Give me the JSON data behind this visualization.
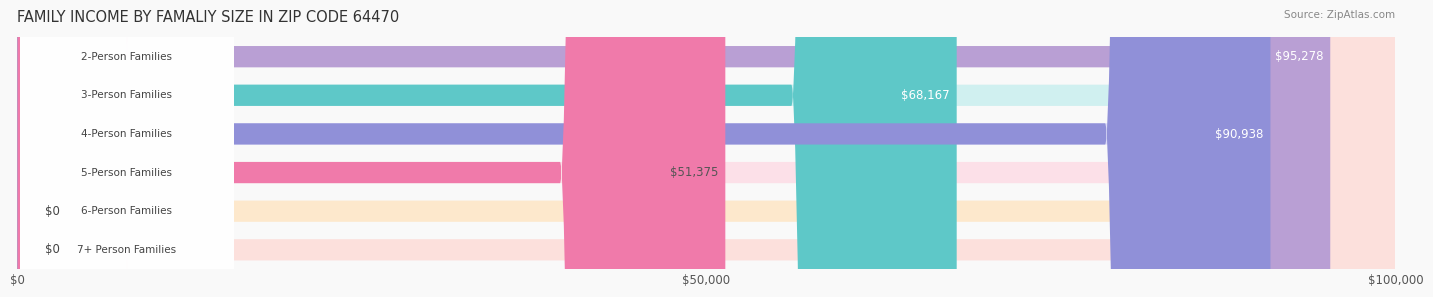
{
  "title": "FAMILY INCOME BY FAMALIY SIZE IN ZIP CODE 64470",
  "source": "Source: ZipAtlas.com",
  "categories": [
    "2-Person Families",
    "3-Person Families",
    "4-Person Families",
    "5-Person Families",
    "6-Person Families",
    "7+ Person Families"
  ],
  "values": [
    95278,
    68167,
    90938,
    51375,
    0,
    0
  ],
  "bar_colors": [
    "#b99fd4",
    "#5ec8c8",
    "#9090d8",
    "#f07aaa",
    "#f5c990",
    "#f0a090"
  ],
  "label_colors": [
    "#ffffff",
    "#ffffff",
    "#ffffff",
    "#555555",
    "#555555",
    "#555555"
  ],
  "bg_colors": [
    "#e8e0f0",
    "#d0f0f0",
    "#dcdcf8",
    "#fce0e8",
    "#fde8cc",
    "#fce0dc"
  ],
  "xlim": [
    0,
    100000
  ],
  "xticks": [
    0,
    50000,
    100000
  ],
  "xticklabels": [
    "$0",
    "$50,000",
    "$100,000"
  ],
  "title_fontsize": 11,
  "bar_height": 0.55,
  "background_color": "#f9f9f9"
}
